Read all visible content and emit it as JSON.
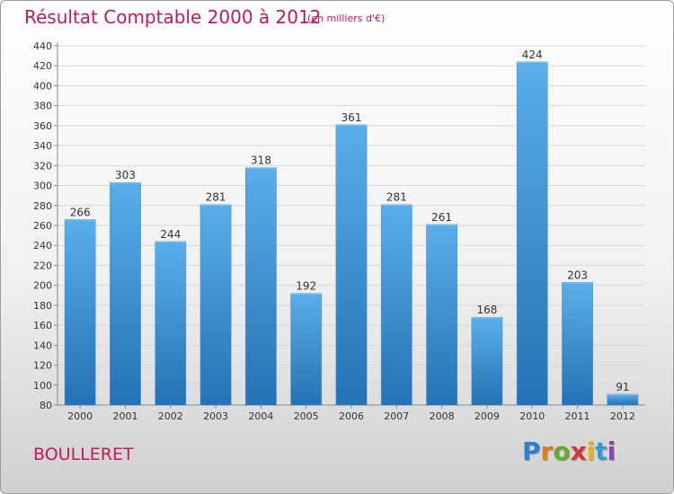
{
  "header": {
    "title": "Résultat Comptable 2000 à 2012",
    "subtitle": "(en milliers d'€)"
  },
  "footer": {
    "commune": "BOULLERET",
    "logo_letters": [
      "P",
      "r",
      "o",
      "x",
      "i",
      "t",
      "i"
    ],
    "logo_colors": [
      "#2f7fd0",
      "#e07a1a",
      "#6aa82f",
      "#d6333a",
      "#e0b51a",
      "#2f9fd0",
      "#8a45b0"
    ]
  },
  "colors": {
    "bar_top": "#5aaeea",
    "bar_bottom": "#2472b5",
    "grid": "#d8d8d8",
    "axis": "#888888",
    "text": "#333333",
    "accent": "#c2185b"
  },
  "chart_data": {
    "type": "bar",
    "title": "Résultat Comptable 2000 à 2012",
    "subtitle": "(en milliers d'€)",
    "categories": [
      "2000",
      "2001",
      "2002",
      "2003",
      "2004",
      "2005",
      "2006",
      "2007",
      "2008",
      "2009",
      "2010",
      "2011",
      "2012"
    ],
    "values": [
      266,
      303,
      244,
      281,
      318,
      192,
      361,
      281,
      261,
      168,
      424,
      203,
      91
    ],
    "xlabel": "",
    "ylabel": "",
    "ylim": [
      80,
      440
    ],
    "ytick_step": 20,
    "grid": true
  }
}
